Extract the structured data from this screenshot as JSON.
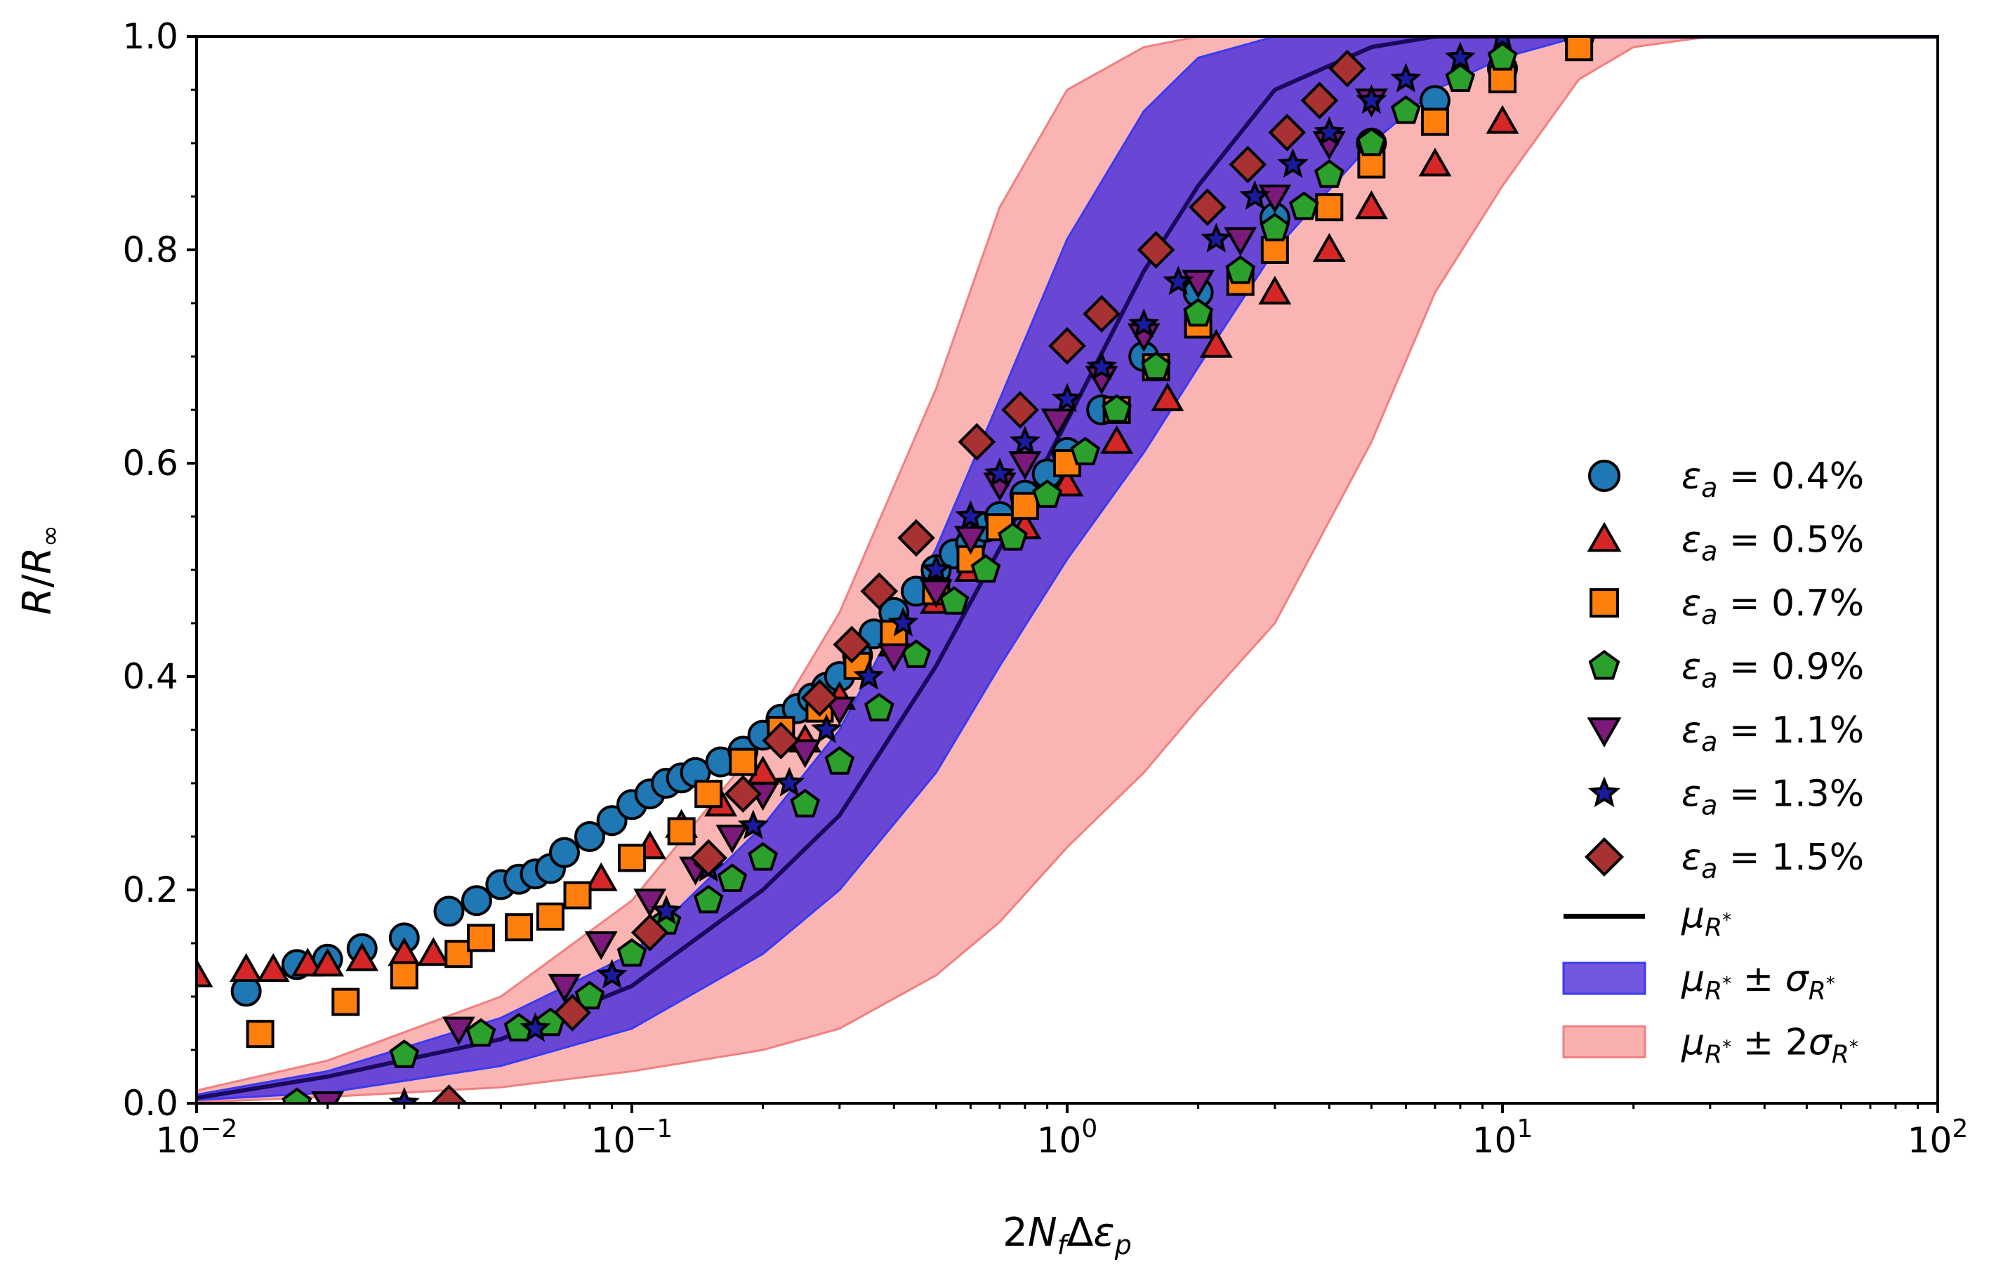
{
  "chart_data": {
    "type": "scatter",
    "xscale": "log",
    "xlim": [
      0.01,
      100
    ],
    "ylim": [
      0,
      1.0
    ],
    "xlabel": "2N_fΔε_p",
    "ylabel": "R/R_∞",
    "legend_position": "lower-right",
    "x_ticks": [
      {
        "base": "10",
        "exp": "−2"
      },
      {
        "base": "10",
        "exp": "−1"
      },
      {
        "base": "10",
        "exp": "0"
      },
      {
        "base": "10",
        "exp": "1"
      },
      {
        "base": "10",
        "exp": "2"
      }
    ],
    "y_ticks": [
      "0.0",
      "0.2",
      "0.4",
      "0.6",
      "0.8",
      "1.0"
    ],
    "model": {
      "label_mean": "μ_R*",
      "label_1sigma": "μ_R* ± σ_R*",
      "label_2sigma": "μ_R* ± 2σ_R*",
      "mean_color": "#1a0a5e",
      "band1_color": "#5a3ad8",
      "band2_color": "#fbb0b0",
      "x": [
        0.01,
        0.02,
        0.05,
        0.1,
        0.2,
        0.3,
        0.5,
        0.7,
        1.0,
        1.5,
        2,
        3,
        5,
        7,
        10,
        15,
        20,
        30,
        100
      ],
      "mean": [
        0.005,
        0.025,
        0.06,
        0.11,
        0.2,
        0.27,
        0.41,
        0.52,
        0.64,
        0.78,
        0.86,
        0.95,
        0.99,
        1.0,
        1.0,
        1.0,
        1.0,
        1.0,
        1.0
      ],
      "sigma1_lower": [
        0.003,
        0.01,
        0.035,
        0.07,
        0.14,
        0.2,
        0.31,
        0.41,
        0.51,
        0.61,
        0.69,
        0.8,
        0.9,
        0.95,
        0.98,
        1.0,
        1.0,
        1.0,
        1.0
      ],
      "sigma1_upper": [
        0.008,
        0.03,
        0.08,
        0.14,
        0.26,
        0.35,
        0.52,
        0.66,
        0.81,
        0.93,
        0.98,
        1.0,
        1.0,
        1.0,
        1.0,
        1.0,
        1.0,
        1.0,
        1.0
      ],
      "sigma2_lower": [
        0.001,
        0.006,
        0.015,
        0.03,
        0.05,
        0.07,
        0.12,
        0.17,
        0.24,
        0.31,
        0.37,
        0.45,
        0.62,
        0.76,
        0.86,
        0.96,
        0.99,
        1.0,
        1.0
      ],
      "sigma2_upper": [
        0.012,
        0.04,
        0.1,
        0.19,
        0.34,
        0.46,
        0.67,
        0.84,
        0.95,
        0.99,
        1.0,
        1.0,
        1.0,
        1.0,
        1.0,
        1.0,
        1.0,
        1.0,
        1.0
      ]
    },
    "series": [
      {
        "name": "ε_a = 0.4%",
        "eps": "0.4%",
        "marker": "circle",
        "color": "#1f77b4",
        "x": [
          0.013,
          0.017,
          0.02,
          0.024,
          0.03,
          0.038,
          0.044,
          0.05,
          0.055,
          0.06,
          0.065,
          0.07,
          0.08,
          0.09,
          0.1,
          0.11,
          0.12,
          0.13,
          0.14,
          0.16,
          0.18,
          0.2,
          0.22,
          0.24,
          0.26,
          0.28,
          0.3,
          0.33,
          0.36,
          0.4,
          0.45,
          0.5,
          0.55,
          0.6,
          0.65,
          0.7,
          0.8,
          0.9,
          1.0,
          1.2,
          1.5,
          2,
          3,
          5,
          7,
          10,
          15
        ],
        "y": [
          0.105,
          0.13,
          0.135,
          0.145,
          0.155,
          0.18,
          0.19,
          0.205,
          0.21,
          0.215,
          0.22,
          0.235,
          0.25,
          0.265,
          0.28,
          0.29,
          0.3,
          0.305,
          0.31,
          0.32,
          0.33,
          0.345,
          0.36,
          0.37,
          0.38,
          0.39,
          0.4,
          0.42,
          0.44,
          0.46,
          0.48,
          0.5,
          0.515,
          0.525,
          0.54,
          0.55,
          0.57,
          0.59,
          0.61,
          0.65,
          0.7,
          0.76,
          0.83,
          0.9,
          0.94,
          0.97,
          1.0
        ]
      },
      {
        "name": "ε_a = 0.5%",
        "eps": "0.5%",
        "marker": "triangle",
        "color": "#d62728",
        "x": [
          0.01,
          0.013,
          0.015,
          0.018,
          0.02,
          0.024,
          0.03,
          0.035,
          0.085,
          0.11,
          0.13,
          0.16,
          0.2,
          0.25,
          0.3,
          0.4,
          0.5,
          0.6,
          0.8,
          1.0,
          1.3,
          1.7,
          2.2,
          3,
          4,
          5,
          7,
          10
        ],
        "y": [
          0.12,
          0.125,
          0.125,
          0.13,
          0.13,
          0.135,
          0.14,
          0.14,
          0.21,
          0.24,
          0.26,
          0.28,
          0.31,
          0.34,
          0.38,
          0.43,
          0.47,
          0.5,
          0.54,
          0.58,
          0.62,
          0.66,
          0.71,
          0.76,
          0.8,
          0.84,
          0.88,
          0.92
        ]
      },
      {
        "name": "ε_a = 0.7%",
        "eps": "0.7%",
        "marker": "square",
        "color": "#ff7f0e",
        "x": [
          0.014,
          0.022,
          0.03,
          0.04,
          0.045,
          0.055,
          0.065,
          0.075,
          0.1,
          0.13,
          0.15,
          0.18,
          0.22,
          0.27,
          0.33,
          0.4,
          0.5,
          0.6,
          0.7,
          0.8,
          1.0,
          1.3,
          1.6,
          2,
          2.5,
          3,
          4,
          5,
          7,
          10,
          15
        ],
        "y": [
          0.065,
          0.095,
          0.12,
          0.14,
          0.155,
          0.165,
          0.175,
          0.195,
          0.23,
          0.255,
          0.29,
          0.32,
          0.35,
          0.37,
          0.41,
          0.44,
          0.48,
          0.51,
          0.54,
          0.56,
          0.6,
          0.65,
          0.69,
          0.73,
          0.77,
          0.8,
          0.84,
          0.88,
          0.92,
          0.96,
          0.99
        ]
      },
      {
        "name": "ε_a = 0.9%",
        "eps": "0.9%",
        "marker": "pentagon",
        "color": "#2ca02c",
        "x": [
          0.017,
          0.03,
          0.045,
          0.055,
          0.065,
          0.08,
          0.1,
          0.12,
          0.15,
          0.17,
          0.2,
          0.25,
          0.3,
          0.37,
          0.45,
          0.55,
          0.65,
          0.75,
          0.9,
          1.1,
          1.3,
          1.6,
          2,
          2.5,
          3,
          3.5,
          4,
          5,
          6,
          8,
          10
        ],
        "y": [
          0.0,
          0.045,
          0.065,
          0.07,
          0.075,
          0.1,
          0.14,
          0.17,
          0.19,
          0.21,
          0.23,
          0.28,
          0.32,
          0.37,
          0.42,
          0.47,
          0.5,
          0.53,
          0.57,
          0.61,
          0.65,
          0.69,
          0.74,
          0.78,
          0.82,
          0.84,
          0.87,
          0.9,
          0.93,
          0.96,
          0.98
        ]
      },
      {
        "name": "ε_a = 1.1%",
        "eps": "1.1%",
        "marker": "tridown",
        "color": "#7b1a7b",
        "x": [
          0.02,
          0.04,
          0.07,
          0.085,
          0.11,
          0.14,
          0.17,
          0.2,
          0.25,
          0.3,
          0.4,
          0.5,
          0.6,
          0.7,
          0.8,
          0.95,
          1.2,
          1.5,
          2,
          2.5,
          3,
          4,
          5
        ],
        "y": [
          0.0,
          0.07,
          0.11,
          0.15,
          0.19,
          0.22,
          0.25,
          0.29,
          0.33,
          0.37,
          0.42,
          0.48,
          0.53,
          0.58,
          0.6,
          0.64,
          0.68,
          0.72,
          0.77,
          0.81,
          0.85,
          0.9,
          0.94
        ]
      },
      {
        "name": "ε_a = 1.3%",
        "eps": "1.3%",
        "marker": "star",
        "color": "#1a1aa0",
        "x": [
          0.03,
          0.06,
          0.09,
          0.12,
          0.15,
          0.19,
          0.23,
          0.28,
          0.35,
          0.42,
          0.5,
          0.6,
          0.7,
          0.8,
          1.0,
          1.2,
          1.5,
          1.8,
          2.2,
          2.7,
          3.3,
          4,
          5,
          6,
          8,
          10
        ],
        "y": [
          0.0,
          0.07,
          0.12,
          0.18,
          0.22,
          0.26,
          0.3,
          0.35,
          0.4,
          0.45,
          0.5,
          0.55,
          0.59,
          0.62,
          0.66,
          0.69,
          0.73,
          0.77,
          0.81,
          0.85,
          0.88,
          0.91,
          0.94,
          0.96,
          0.98,
          1.0
        ]
      },
      {
        "name": "ε_a = 1.5%",
        "eps": "1.5%",
        "marker": "diamond",
        "color": "#a83232",
        "x": [
          0.038,
          0.073,
          0.11,
          0.15,
          0.18,
          0.22,
          0.27,
          0.32,
          0.37,
          0.45,
          0.62,
          0.78,
          1.0,
          1.2,
          1.6,
          2.1,
          2.6,
          3.2,
          3.8,
          4.4
        ],
        "y": [
          0.0,
          0.085,
          0.16,
          0.23,
          0.29,
          0.34,
          0.38,
          0.43,
          0.48,
          0.53,
          0.62,
          0.65,
          0.71,
          0.74,
          0.8,
          0.84,
          0.88,
          0.91,
          0.94,
          0.97
        ]
      }
    ]
  }
}
